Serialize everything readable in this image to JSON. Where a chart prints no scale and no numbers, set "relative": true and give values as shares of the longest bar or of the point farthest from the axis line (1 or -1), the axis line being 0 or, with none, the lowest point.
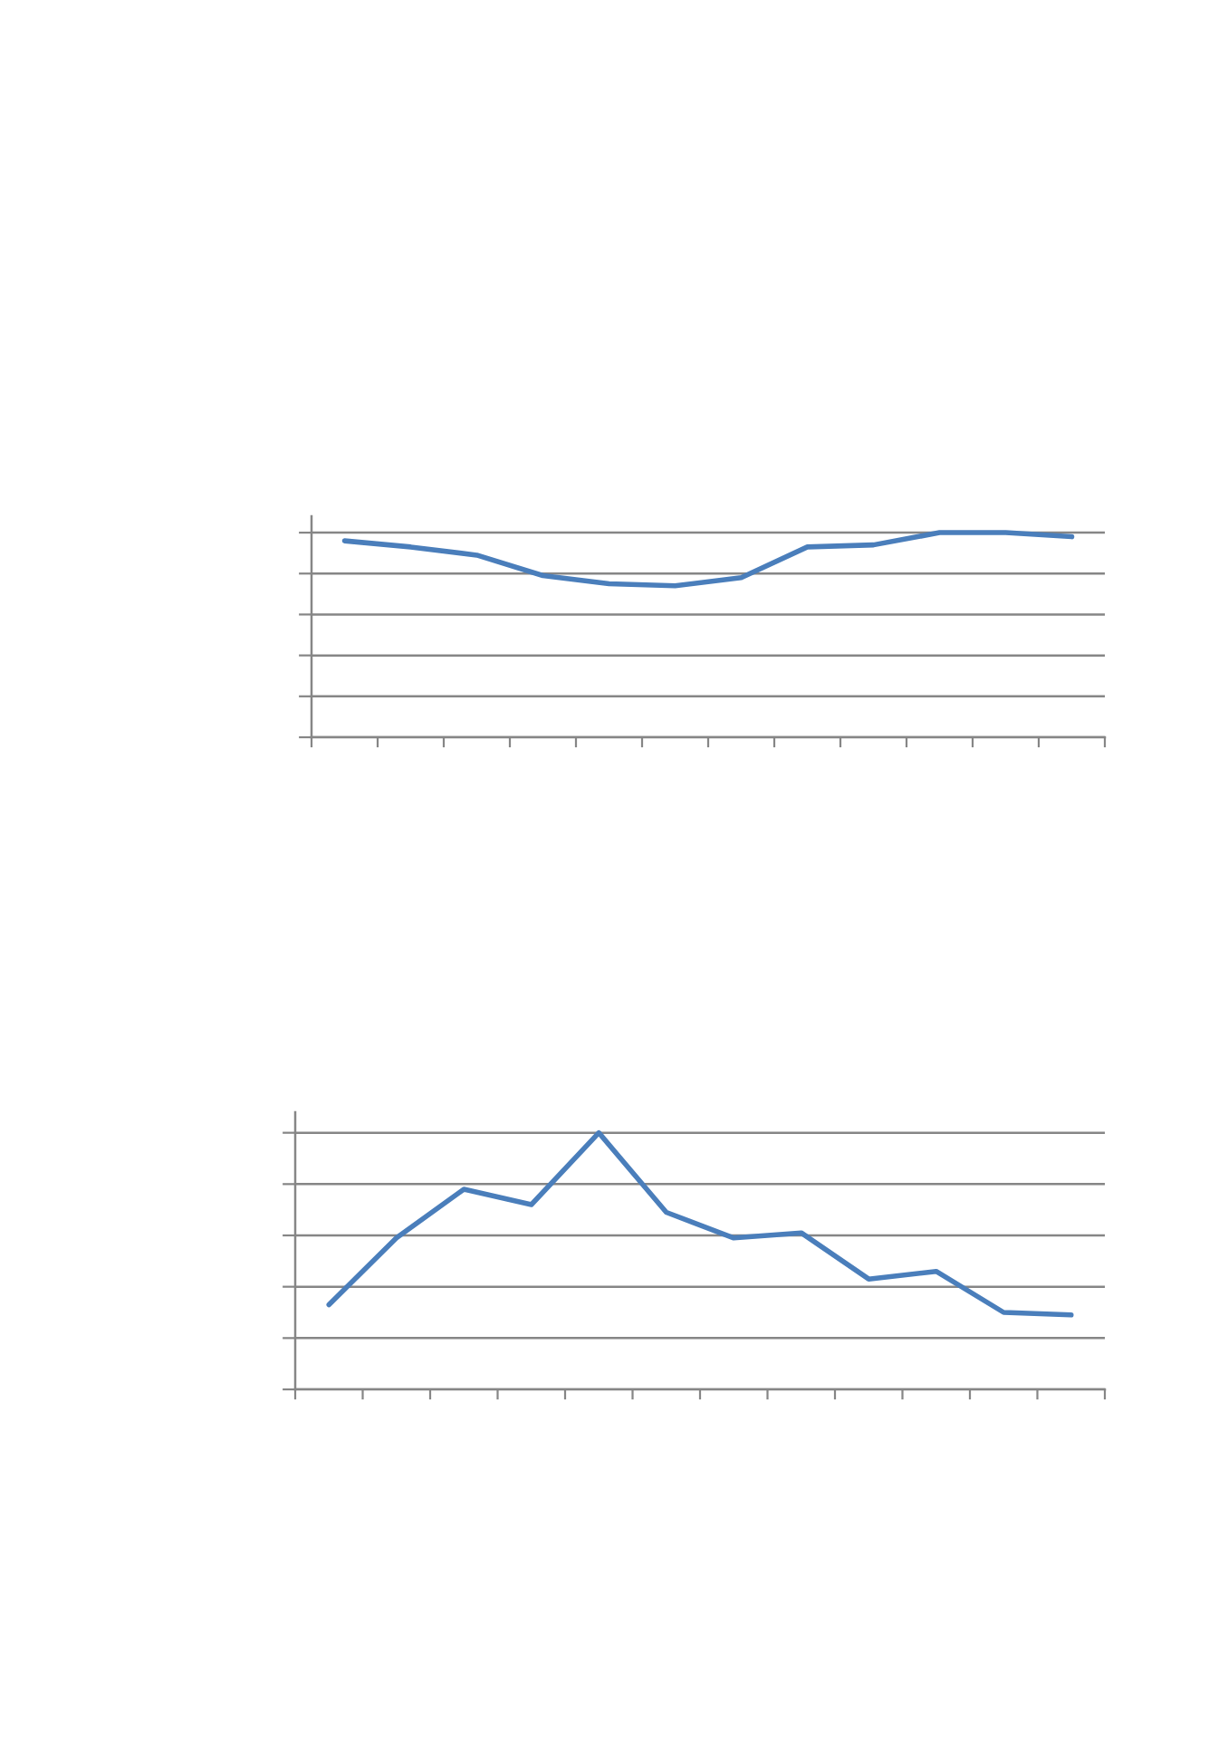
{
  "chart_data": [
    {
      "type": "line",
      "relative": true,
      "categories": [
        null,
        null,
        null,
        null,
        null,
        null,
        null,
        null,
        null,
        null,
        null,
        null
      ],
      "series": [
        {
          "color": "#4a7ebb",
          "values": [
            0.96,
            0.93,
            0.89,
            0.79,
            0.75,
            0.74,
            0.78,
            0.93,
            0.94,
            1,
            1,
            0.98
          ]
        }
      ],
      "grid": "y"
    },
    {
      "type": "line",
      "relative": true,
      "categories": [
        null,
        null,
        null,
        null,
        null,
        null,
        null,
        null,
        null,
        null,
        null,
        null
      ],
      "series": [
        {
          "color": "#4a7ebb",
          "values": [
            0.33,
            0.59,
            0.78,
            0.72,
            1,
            0.69,
            0.59,
            0.61,
            0.43,
            0.46,
            0.3,
            0.29
          ]
        }
      ],
      "grid": "y"
    }
  ]
}
